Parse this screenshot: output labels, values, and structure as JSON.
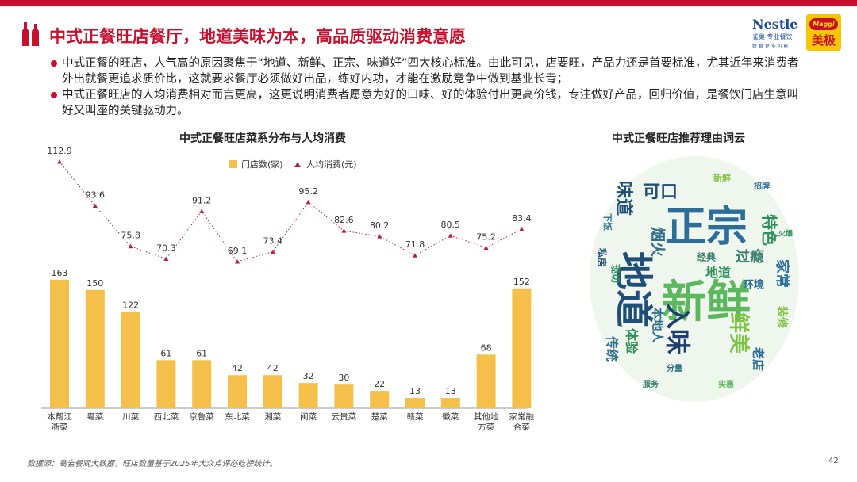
{
  "header": {
    "title": "中式正餐旺店餐厅，地道美味为本，高品质驱动消费意愿",
    "logo_nestle": "Nestle",
    "logo_nestle_sub": "雀巢 专业餐饮",
    "logo_nestle_tagline": "好 食 更 多 可 能",
    "logo_maggi_top": "Maggi",
    "logo_maggi_cn": "美极",
    "accent_color": "#c8102e"
  },
  "bullets": [
    "中式正餐的旺店，人气高的原因聚焦于“地道、新鲜、正宗、味道好”四大核心标准。由此可见，店要旺，产品力还是首要标准，尤其近年来消费者外出就餐更追求质价比，这就要求餐厅必须做好出品，练好内功，才能在激励竞争中做到基业长青；",
    "中式正餐旺店的人均消费相对而言更高，这更说明消费者愿意为好的口味、好的体验付出更高价钱，专注做好产品，回归价值，是餐饮门店生意叫好又叫座的关键驱动力。"
  ],
  "chart_data": {
    "type": "bar",
    "title": "中式正餐旺店菜系分布与人均消费",
    "categories": [
      "本帮江浙菜",
      "粤菜",
      "川菜",
      "西北菜",
      "京鲁菜",
      "东北菜",
      "湘菜",
      "闽菜",
      "云贵菜",
      "楚菜",
      "赣菜",
      "徽菜",
      "其他地方菜",
      "家常融合菜"
    ],
    "category_lines": [
      [
        "本帮江",
        "浙菜"
      ],
      [
        "粤菜"
      ],
      [
        "川菜"
      ],
      [
        "西北菜"
      ],
      [
        "京鲁菜"
      ],
      [
        "东北菜"
      ],
      [
        "湘菜"
      ],
      [
        "闽菜"
      ],
      [
        "云贵菜"
      ],
      [
        "楚菜"
      ],
      [
        "赣菜"
      ],
      [
        "徽菜"
      ],
      [
        "其他地",
        "方菜"
      ],
      [
        "家常融",
        "合菜"
      ]
    ],
    "series": [
      {
        "name": "门店数(家)",
        "type": "bar",
        "color": "#f5c04a",
        "values": [
          163,
          150,
          122,
          61,
          61,
          42,
          42,
          32,
          30,
          22,
          13,
          13,
          68,
          152
        ]
      },
      {
        "name": "人均消费(元)",
        "type": "line",
        "color": "#b5243a",
        "values": [
          112.9,
          93.6,
          75.8,
          70.3,
          91.2,
          69.1,
          73.4,
          95.2,
          82.6,
          80.2,
          71.8,
          80.5,
          75.2,
          83.4
        ]
      }
    ],
    "legend_position": "top"
  },
  "wordcloud": {
    "title": "中式正餐旺店推荐理由词云",
    "words": [
      {
        "text": "新鲜",
        "size": 56,
        "color": "#5cb85c"
      },
      {
        "text": "正宗",
        "size": 52,
        "color": "#2c6e99"
      },
      {
        "text": "地道",
        "size": 48,
        "color": "#1f4e79"
      },
      {
        "text": "入味",
        "size": 32,
        "color": "#1f3f70"
      },
      {
        "text": "鲜美",
        "size": 26,
        "color": "#7dc242"
      },
      {
        "text": "味道",
        "size": 22,
        "color": "#1f4e79"
      },
      {
        "text": "可口",
        "size": 22,
        "color": "#1f4e79"
      },
      {
        "text": "特色",
        "size": 20,
        "color": "#2f8f5b"
      },
      {
        "text": "烟火",
        "size": 19,
        "color": "#2f6f88"
      },
      {
        "text": "过瘾",
        "size": 18,
        "color": "#3a7f6f"
      },
      {
        "text": "家常",
        "size": 18,
        "color": "#2c6e99"
      },
      {
        "text": "地道",
        "size": 16,
        "color": "#2f8f5b"
      },
      {
        "text": "传统",
        "size": 16,
        "color": "#2f6f88"
      },
      {
        "text": "体验",
        "size": 16,
        "color": "#2f8f5b"
      },
      {
        "text": "本地人",
        "size": 15,
        "color": "#2f6f88"
      },
      {
        "text": "老店",
        "size": 15,
        "color": "#2c6e99"
      },
      {
        "text": "装修",
        "size": 14,
        "color": "#7dc242"
      },
      {
        "text": "环境",
        "size": 13,
        "color": "#2c6e99"
      },
      {
        "text": "经典",
        "size": 12,
        "color": "#3a7f6f"
      },
      {
        "text": "私房",
        "size": 12,
        "color": "#1f4e79"
      },
      {
        "text": "现切",
        "size": 12,
        "color": "#2f8f5b"
      },
      {
        "text": "下饭",
        "size": 11,
        "color": "#2c6e99"
      },
      {
        "text": "新鲜",
        "size": 11,
        "color": "#7dc242"
      },
      {
        "text": "分量",
        "size": 10,
        "color": "#2f6f88"
      },
      {
        "text": "实惠",
        "size": 10,
        "color": "#5cb85c"
      },
      {
        "text": "服务",
        "size": 10,
        "color": "#3a7f6f"
      },
      {
        "text": "招牌",
        "size": 10,
        "color": "#2c6e99"
      },
      {
        "text": "火爆",
        "size": 9,
        "color": "#2f8f5b"
      }
    ]
  },
  "footnote": "数据源：高岩餐观大数据，旺店数量基于2025年大众点评必吃榜统计。",
  "page_number": "42"
}
